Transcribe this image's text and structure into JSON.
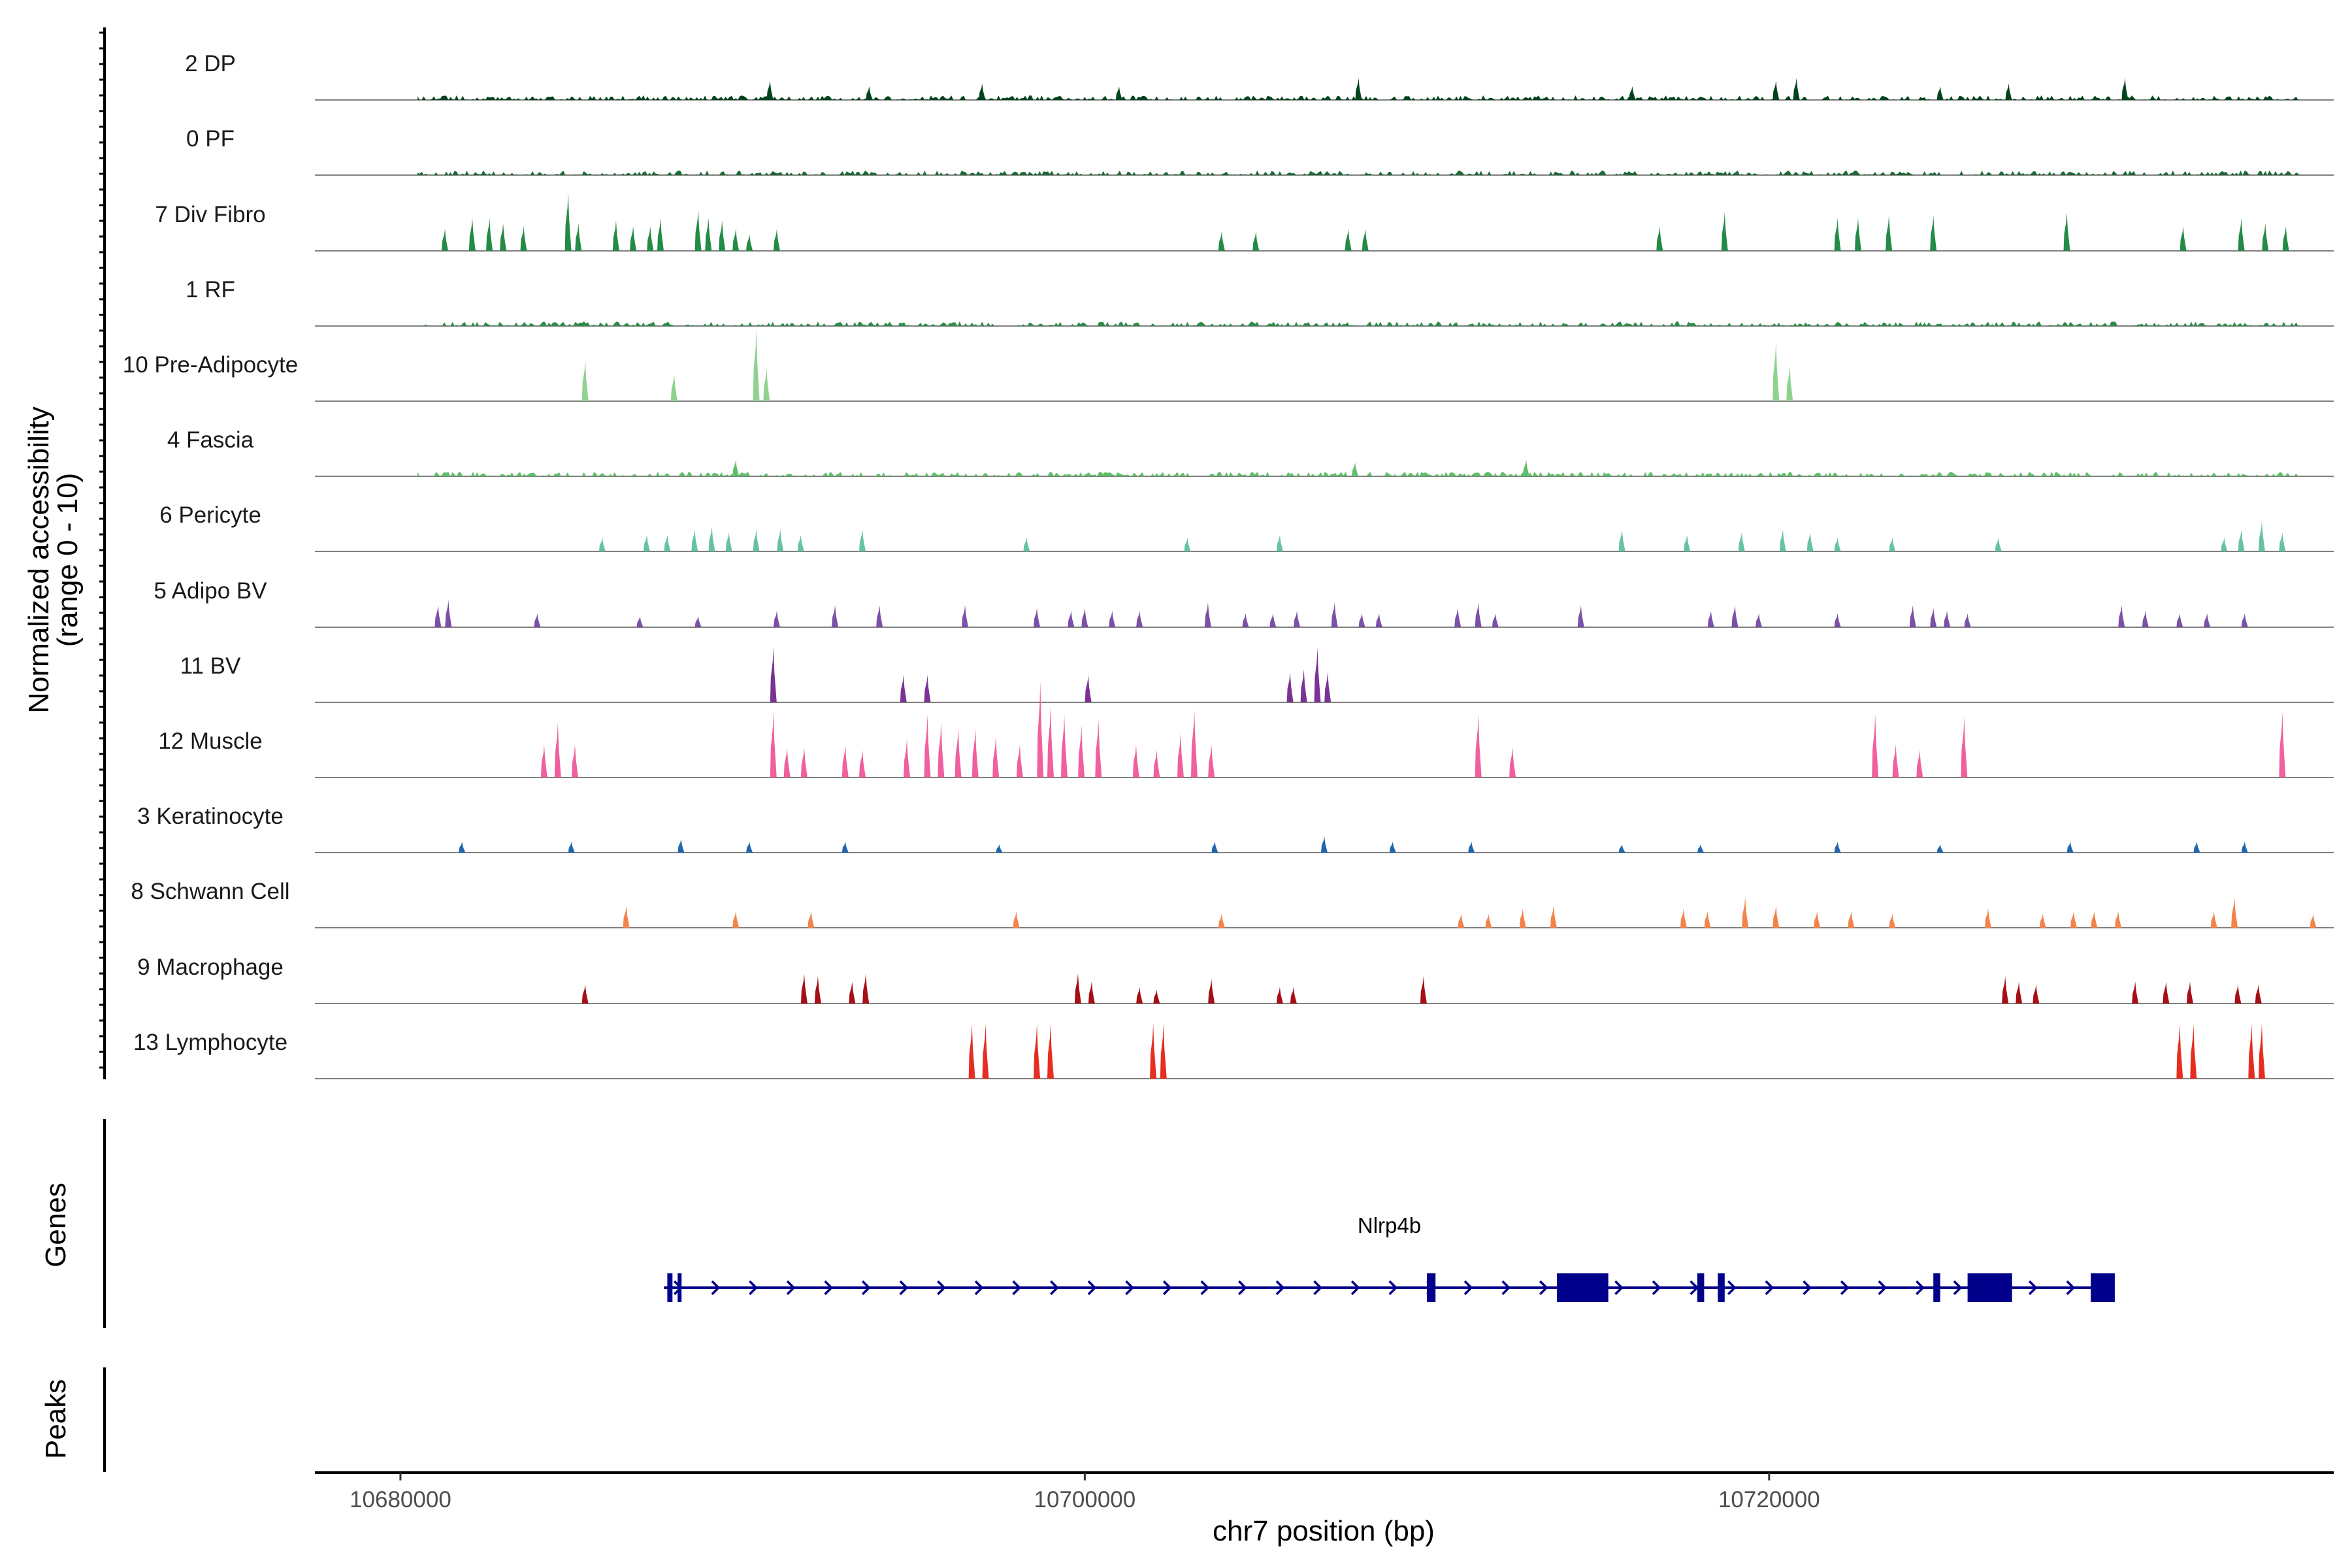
{
  "chart_data": {
    "type": "coverage-tracks",
    "y_axis_title_line1": "Normalized accessibility",
    "y_axis_title_line2": "(range 0 - 10)",
    "y_range": [
      0,
      10
    ],
    "x_axis_title": "chr7 position (bp)",
    "x_range": [
      10677500,
      10736500
    ],
    "x_ticks": [
      10680000,
      10700000,
      10720000
    ],
    "x_tick_labels": [
      "10680000",
      "10700000",
      "10720000"
    ],
    "tracks": [
      {
        "name": "2 DP",
        "color": "#00441b",
        "style": "dense",
        "peaks": [
          [
            10690800,
            0.7
          ],
          [
            10693700,
            0.5
          ],
          [
            10697000,
            0.6
          ],
          [
            10701000,
            0.5
          ],
          [
            10708000,
            0.8
          ],
          [
            10716000,
            0.5
          ],
          [
            10720200,
            0.7
          ],
          [
            10720800,
            0.8
          ],
          [
            10725000,
            0.5
          ],
          [
            10727000,
            0.6
          ],
          [
            10730400,
            0.8
          ]
        ]
      },
      {
        "name": "0 PF",
        "color": "#1b6b34",
        "style": "dense",
        "peaks": []
      },
      {
        "name": "7 Div Fibro",
        "color": "#238b45",
        "style": "peaks",
        "peaks": [
          [
            10681300,
            0.8
          ],
          [
            10682100,
            1.2
          ],
          [
            10682600,
            1.2
          ],
          [
            10683000,
            1.0
          ],
          [
            10683600,
            0.9
          ],
          [
            10684900,
            2.1
          ],
          [
            10685200,
            1.0
          ],
          [
            10686300,
            1.1
          ],
          [
            10686800,
            0.9
          ],
          [
            10687300,
            0.9
          ],
          [
            10687600,
            1.2
          ],
          [
            10688700,
            1.5
          ],
          [
            10689000,
            1.2
          ],
          [
            10689400,
            1.1
          ],
          [
            10689800,
            0.8
          ],
          [
            10690200,
            0.6
          ],
          [
            10691000,
            0.8
          ],
          [
            10704000,
            0.7
          ],
          [
            10705000,
            0.7
          ],
          [
            10707700,
            0.8
          ],
          [
            10708200,
            0.8
          ],
          [
            10716800,
            0.9
          ],
          [
            10718700,
            1.4
          ],
          [
            10722000,
            1.2
          ],
          [
            10722600,
            1.2
          ],
          [
            10723500,
            1.3
          ],
          [
            10724800,
            1.3
          ],
          [
            10728700,
            1.4
          ],
          [
            10732100,
            0.9
          ],
          [
            10733800,
            1.2
          ],
          [
            10734500,
            1.0
          ],
          [
            10735100,
            0.9
          ]
        ]
      },
      {
        "name": "1 RF",
        "color": "#2e8b4a",
        "style": "dense",
        "peaks": []
      },
      {
        "name": "10 Pre-Adipocyte",
        "color": "#8fd28f",
        "style": "peaks",
        "peaks": [
          [
            10685400,
            1.5
          ],
          [
            10688000,
            1.0
          ],
          [
            10690400,
            2.6
          ],
          [
            10690700,
            1.2
          ],
          [
            10720200,
            2.2
          ],
          [
            10720600,
            1.3
          ]
        ]
      },
      {
        "name": "4 Fascia",
        "color": "#5fbf6a",
        "style": "dense",
        "peaks": [
          [
            10689800,
            0.6
          ],
          [
            10707900,
            0.5
          ],
          [
            10712900,
            0.6
          ]
        ]
      },
      {
        "name": "6 Pericyte",
        "color": "#66c2a4",
        "style": "peaks",
        "peaks": [
          [
            10685900,
            0.5
          ],
          [
            10687200,
            0.6
          ],
          [
            10687800,
            0.6
          ],
          [
            10688600,
            0.8
          ],
          [
            10689100,
            0.9
          ],
          [
            10689600,
            0.7
          ],
          [
            10690400,
            0.8
          ],
          [
            10691100,
            0.8
          ],
          [
            10691700,
            0.6
          ],
          [
            10693500,
            0.8
          ],
          [
            10698300,
            0.5
          ],
          [
            10703000,
            0.5
          ],
          [
            10705700,
            0.6
          ],
          [
            10715700,
            0.8
          ],
          [
            10717600,
            0.6
          ],
          [
            10719200,
            0.7
          ],
          [
            10720400,
            0.8
          ],
          [
            10721200,
            0.7
          ],
          [
            10722000,
            0.5
          ],
          [
            10723600,
            0.5
          ],
          [
            10726700,
            0.5
          ],
          [
            10733300,
            0.5
          ],
          [
            10733800,
            0.8
          ],
          [
            10734400,
            1.1
          ],
          [
            10735000,
            0.7
          ]
        ]
      },
      {
        "name": "5 Adipo BV",
        "color": "#7b50a6",
        "style": "peaks",
        "peaks": [
          [
            10681100,
            0.8
          ],
          [
            10681400,
            1.0
          ],
          [
            10684000,
            0.5
          ],
          [
            10687000,
            0.4
          ],
          [
            10688700,
            0.4
          ],
          [
            10691000,
            0.6
          ],
          [
            10692700,
            0.8
          ],
          [
            10694000,
            0.8
          ],
          [
            10696500,
            0.8
          ],
          [
            10698600,
            0.7
          ],
          [
            10699600,
            0.6
          ],
          [
            10700000,
            0.7
          ],
          [
            10700800,
            0.6
          ],
          [
            10701600,
            0.6
          ],
          [
            10703600,
            0.9
          ],
          [
            10704700,
            0.5
          ],
          [
            10705500,
            0.5
          ],
          [
            10706200,
            0.6
          ],
          [
            10707300,
            0.9
          ],
          [
            10708100,
            0.5
          ],
          [
            10708600,
            0.5
          ],
          [
            10710900,
            0.7
          ],
          [
            10711500,
            0.9
          ],
          [
            10712000,
            0.5
          ],
          [
            10714500,
            0.8
          ],
          [
            10718300,
            0.6
          ],
          [
            10719000,
            0.8
          ],
          [
            10719700,
            0.5
          ],
          [
            10722000,
            0.5
          ],
          [
            10724200,
            0.8
          ],
          [
            10724800,
            0.7
          ],
          [
            10725200,
            0.6
          ],
          [
            10725800,
            0.5
          ],
          [
            10730300,
            0.8
          ],
          [
            10731000,
            0.6
          ],
          [
            10732000,
            0.5
          ],
          [
            10732800,
            0.5
          ],
          [
            10733900,
            0.5
          ]
        ]
      },
      {
        "name": "11 BV",
        "color": "#7b3294",
        "style": "peaks",
        "peaks": [
          [
            10690900,
            2.0
          ],
          [
            10694700,
            1.0
          ],
          [
            10695400,
            1.0
          ],
          [
            10700100,
            1.0
          ],
          [
            10706000,
            1.1
          ],
          [
            10706400,
            1.2
          ],
          [
            10706800,
            2.0
          ],
          [
            10707100,
            1.1
          ]
        ]
      },
      {
        "name": "12 Muscle",
        "color": "#f0609e",
        "style": "peaks",
        "peaks": [
          [
            10684200,
            1.2
          ],
          [
            10684600,
            2.0
          ],
          [
            10685100,
            1.2
          ],
          [
            10690900,
            2.4
          ],
          [
            10691300,
            1.1
          ],
          [
            10691800,
            1.1
          ],
          [
            10693000,
            1.2
          ],
          [
            10693500,
            1.0
          ],
          [
            10694800,
            1.4
          ],
          [
            10695400,
            2.3
          ],
          [
            10695800,
            2.0
          ],
          [
            10696300,
            1.8
          ],
          [
            10696800,
            1.8
          ],
          [
            10697400,
            1.5
          ],
          [
            10698100,
            1.2
          ],
          [
            10698700,
            3.5
          ],
          [
            10699000,
            2.6
          ],
          [
            10699400,
            2.3
          ],
          [
            10699900,
            1.9
          ],
          [
            10700400,
            2.1
          ],
          [
            10701500,
            1.2
          ],
          [
            10702100,
            1.0
          ],
          [
            10702800,
            1.6
          ],
          [
            10703200,
            2.5
          ],
          [
            10703700,
            1.2
          ],
          [
            10711500,
            2.3
          ],
          [
            10712500,
            1.1
          ],
          [
            10723100,
            2.3
          ],
          [
            10723700,
            1.2
          ],
          [
            10724400,
            1.0
          ],
          [
            10725700,
            2.2
          ],
          [
            10735000,
            2.4
          ]
        ]
      },
      {
        "name": "3 Keratinocyte",
        "color": "#2166ac",
        "style": "peaks",
        "peaks": [
          [
            10681800,
            0.4
          ],
          [
            10685000,
            0.4
          ],
          [
            10688200,
            0.5
          ],
          [
            10690200,
            0.4
          ],
          [
            10693000,
            0.4
          ],
          [
            10697500,
            0.3
          ],
          [
            10703800,
            0.4
          ],
          [
            10707000,
            0.6
          ],
          [
            10709000,
            0.4
          ],
          [
            10711300,
            0.4
          ],
          [
            10715700,
            0.3
          ],
          [
            10718000,
            0.3
          ],
          [
            10722000,
            0.4
          ],
          [
            10725000,
            0.3
          ],
          [
            10728800,
            0.4
          ],
          [
            10732500,
            0.4
          ],
          [
            10733900,
            0.4
          ]
        ]
      },
      {
        "name": "8 Schwann Cell",
        "color": "#f2844b",
        "style": "peaks",
        "peaks": [
          [
            10686600,
            0.8
          ],
          [
            10689800,
            0.6
          ],
          [
            10692000,
            0.6
          ],
          [
            10698000,
            0.6
          ],
          [
            10704000,
            0.5
          ],
          [
            10711000,
            0.5
          ],
          [
            10711800,
            0.5
          ],
          [
            10712800,
            0.7
          ],
          [
            10713700,
            0.8
          ],
          [
            10717500,
            0.7
          ],
          [
            10718200,
            0.6
          ],
          [
            10719300,
            1.1
          ],
          [
            10720200,
            0.8
          ],
          [
            10721400,
            0.6
          ],
          [
            10722400,
            0.6
          ],
          [
            10723600,
            0.5
          ],
          [
            10726400,
            0.7
          ],
          [
            10728000,
            0.5
          ],
          [
            10728900,
            0.6
          ],
          [
            10729500,
            0.6
          ],
          [
            10730200,
            0.6
          ],
          [
            10733000,
            0.6
          ],
          [
            10733600,
            1.1
          ],
          [
            10735900,
            0.5
          ]
        ]
      },
      {
        "name": "9 Macrophage",
        "color": "#a50f15",
        "style": "peaks",
        "peaks": [
          [
            10685400,
            0.7
          ],
          [
            10691800,
            1.1
          ],
          [
            10692200,
            1.0
          ],
          [
            10693200,
            0.8
          ],
          [
            10693600,
            1.1
          ],
          [
            10699800,
            1.1
          ],
          [
            10700200,
            0.8
          ],
          [
            10701600,
            0.6
          ],
          [
            10702100,
            0.5
          ],
          [
            10703700,
            0.9
          ],
          [
            10705700,
            0.6
          ],
          [
            10706100,
            0.6
          ],
          [
            10709900,
            1.0
          ],
          [
            10726900,
            1.0
          ],
          [
            10727300,
            0.8
          ],
          [
            10727800,
            0.7
          ],
          [
            10730700,
            0.8
          ],
          [
            10731600,
            0.8
          ],
          [
            10732300,
            0.8
          ],
          [
            10733700,
            0.7
          ],
          [
            10734300,
            0.7
          ]
        ]
      },
      {
        "name": "13 Lymphocyte",
        "color": "#e52e20",
        "style": "peaks",
        "peaks": [
          [
            10696700,
            2.0
          ],
          [
            10697100,
            2.0
          ],
          [
            10698600,
            2.0
          ],
          [
            10699000,
            2.0
          ],
          [
            10702000,
            2.0
          ],
          [
            10702300,
            2.0
          ],
          [
            10732000,
            2.0
          ],
          [
            10732400,
            2.0
          ],
          [
            10734100,
            2.0
          ],
          [
            10734400,
            2.0
          ]
        ]
      }
    ],
    "genes_track": {
      "title": "Genes",
      "gene": "Nlrp4b",
      "strand": "+",
      "color": "#00008b",
      "start": 10687700,
      "end": 10730100,
      "exons": [
        [
          10687800,
          10687950
        ],
        [
          10688100,
          10688200
        ],
        [
          10710000,
          10710250
        ],
        [
          10713800,
          10715300
        ],
        [
          10717900,
          10718100
        ],
        [
          10718500,
          10718700
        ],
        [
          10724800,
          10725000
        ],
        [
          10725800,
          10727100
        ],
        [
          10729400,
          10730100
        ]
      ]
    },
    "peaks_track": {
      "title": "Peaks"
    }
  }
}
